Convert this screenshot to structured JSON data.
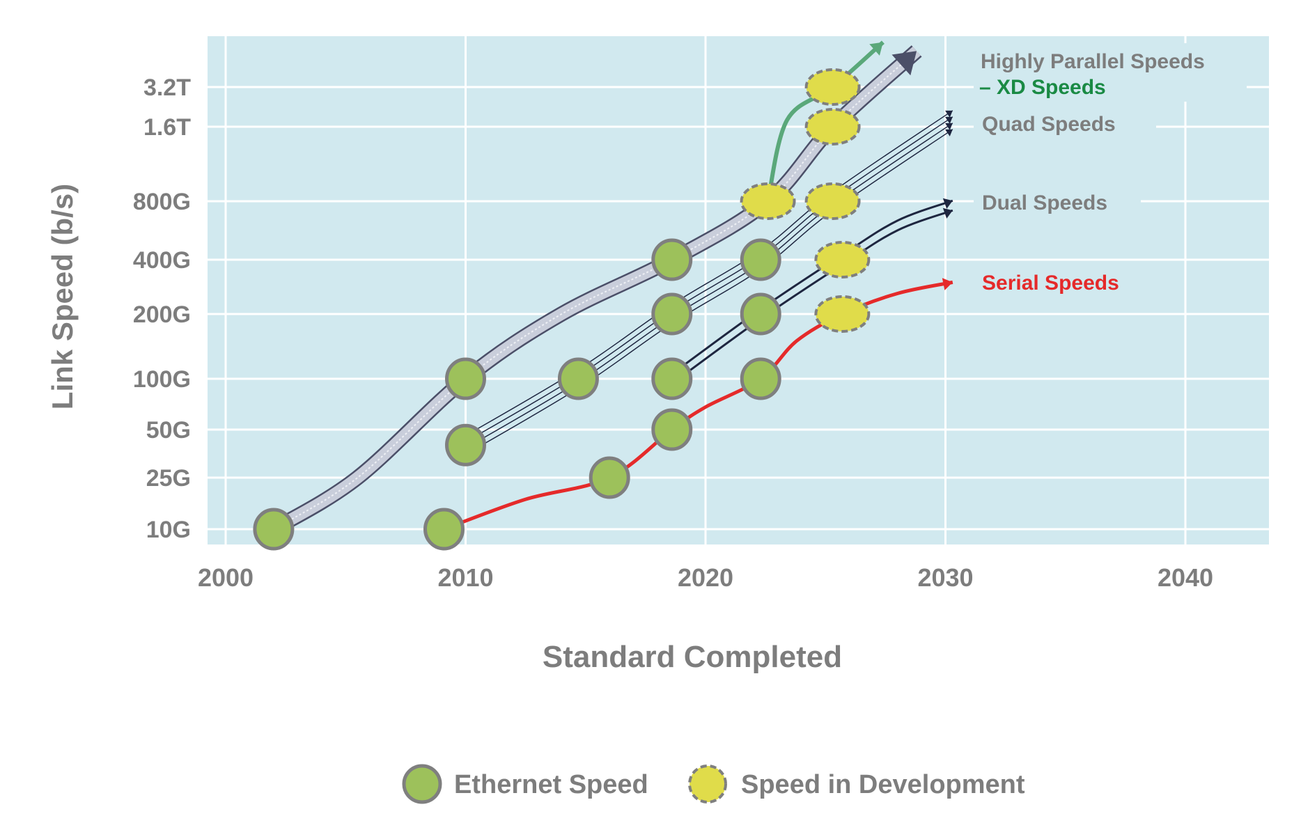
{
  "chart_data": {
    "type": "scatter",
    "title": "",
    "xlabel": "Standard Completed",
    "ylabel": "Link Speed (b/s)",
    "xlim": [
      1999.2,
      2043.6
    ],
    "y_scale": "log",
    "x_ticks": [
      2000,
      2010,
      2020,
      2030,
      2040
    ],
    "y_ticks": [
      {
        "value": 10,
        "label": "10G"
      },
      {
        "value": 25,
        "label": "25G"
      },
      {
        "value": 50,
        "label": "50G"
      },
      {
        "value": 100,
        "label": "100G"
      },
      {
        "value": 200,
        "label": "200G"
      },
      {
        "value": 400,
        "label": "400G"
      },
      {
        "value": 800,
        "label": "800G"
      },
      {
        "value": 1600,
        "label": "1.6T"
      },
      {
        "value": 3200,
        "label": "3.2T"
      }
    ],
    "y_unit": "Gb/s",
    "grid": true,
    "colors": {
      "plot_bg": "#d1e9ef",
      "grid": "#ffffff",
      "text": "#7d7d7d",
      "ethernet": "#9dc15b",
      "development": "#e0dc4a",
      "marker_edge": "#7f7f7f",
      "serial": "#e52a2a",
      "xd": "#5aa87a",
      "parallel": "#4b4f68",
      "thin": "#1e2640"
    },
    "series": [
      {
        "name": "Ethernet Speed",
        "marker": "circle-solid",
        "points": [
          [
            2002,
            10
          ],
          [
            2009.1,
            10
          ],
          [
            2010,
            100
          ],
          [
            2010,
            40
          ],
          [
            2014.7,
            100
          ],
          [
            2016,
            25
          ],
          [
            2018.6,
            50
          ],
          [
            2018.6,
            100
          ],
          [
            2018.6,
            200
          ],
          [
            2018.6,
            400
          ],
          [
            2022.3,
            100
          ],
          [
            2022.3,
            200
          ],
          [
            2022.3,
            400
          ]
        ]
      },
      {
        "name": "Speed in Development",
        "marker": "ellipse-dashed",
        "points": [
          [
            2022.6,
            800
          ],
          [
            2025.3,
            800
          ],
          [
            2025.3,
            1600
          ],
          [
            2025.3,
            3200
          ],
          [
            2025.7,
            400
          ],
          [
            2025.7,
            200
          ]
        ]
      }
    ],
    "trend_lines": [
      {
        "label": "Highly Parallel Speeds",
        "style": "band",
        "points": [
          [
            2002,
            10
          ],
          [
            2005.5,
            25
          ],
          [
            2010,
            100
          ],
          [
            2014,
            200
          ],
          [
            2018.6,
            400
          ],
          [
            2022.6,
            800
          ],
          [
            2025.3,
            1600
          ],
          [
            2028.8,
            6000
          ]
        ]
      },
      {
        "label": "– XD Speeds",
        "style": "xd",
        "points": [
          [
            2022.6,
            800
          ],
          [
            2023.4,
            1800
          ],
          [
            2025.3,
            3200
          ],
          [
            2027.4,
            7000
          ]
        ]
      },
      {
        "label": "Quad Speeds",
        "style": "thin",
        "count": 4,
        "points": [
          [
            2010,
            40
          ],
          [
            2014.7,
            100
          ],
          [
            2018.6,
            200
          ],
          [
            2022.3,
            400
          ],
          [
            2025.3,
            800
          ],
          [
            2030.3,
            1800
          ]
        ]
      },
      {
        "label": "Dual Speeds",
        "style": "dual",
        "count": 2,
        "points": [
          [
            2018.6,
            100
          ],
          [
            2022.3,
            200
          ],
          [
            2025.7,
            400
          ],
          [
            2028,
            600
          ],
          [
            2030.3,
            760
          ]
        ]
      },
      {
        "label": "Serial Speeds",
        "style": "serial",
        "points": [
          [
            2009.1,
            10
          ],
          [
            2012.5,
            17
          ],
          [
            2016,
            25
          ],
          [
            2018.6,
            50
          ],
          [
            2020,
            68
          ],
          [
            2022.3,
            100
          ],
          [
            2023.8,
            150
          ],
          [
            2025.7,
            200
          ],
          [
            2028,
            260
          ],
          [
            2030.3,
            300
          ]
        ]
      }
    ]
  },
  "legend": {
    "ethernet": "Ethernet Speed",
    "development": "Speed in Development"
  }
}
